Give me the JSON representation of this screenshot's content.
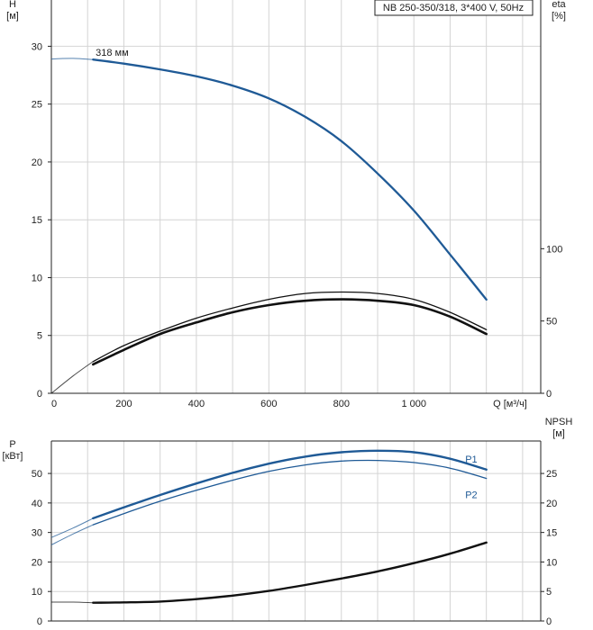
{
  "chart_data": [
    {
      "type": "line",
      "panel": "top",
      "legend_box": "NB 250-350/318, 3*400 V, 50Hz",
      "grid": true,
      "left_axis": {
        "title_line1": "H",
        "title_line2": "[м]",
        "range": [
          0,
          34
        ],
        "ticks": [
          0,
          5,
          10,
          15,
          20,
          25,
          30
        ],
        "tick_labels": [
          "0",
          "5",
          "10",
          "15",
          "20",
          "25",
          "30"
        ]
      },
      "right_axis": {
        "title_line1": "eta",
        "title_line2": "[%]",
        "range": [
          0,
          272
        ],
        "ticks": [
          0,
          50,
          100
        ],
        "tick_labels": [
          "0",
          "50",
          "100"
        ]
      },
      "x_axis": {
        "title": "Q [м³/ч]",
        "range": [
          0,
          1350
        ],
        "ticks": [
          0,
          200,
          400,
          600,
          800,
          1000
        ],
        "tick_labels": [
          "0",
          "200",
          "400",
          "600",
          "800",
          "1 000"
        ],
        "grid_every": 100
      },
      "series": [
        {
          "name": "318 мм",
          "axis": "left",
          "color": "#1f5a96",
          "width": 2.3,
          "x": [
            0,
            60,
            115,
            200,
            300,
            400,
            500,
            600,
            700,
            800,
            900,
            1000,
            1100,
            1200
          ],
          "y": [
            28.9,
            28.95,
            28.85,
            28.5,
            28.0,
            27.4,
            26.6,
            25.5,
            23.9,
            21.8,
            19.0,
            15.8,
            12.0,
            8.1
          ],
          "dashed_to_x": 115
        },
        {
          "name": "",
          "axis": "right",
          "color": "#111111",
          "width": 1.3,
          "x": [
            0,
            60,
            115,
            200,
            300,
            400,
            500,
            600,
            700,
            800,
            900,
            1000,
            1100,
            1200
          ],
          "y": [
            0,
            12,
            22,
            33,
            43,
            52,
            59,
            65,
            69,
            70,
            69,
            65,
            56,
            44
          ],
          "dashed_to_x": 115
        },
        {
          "name": "",
          "axis": "right",
          "color": "#111111",
          "width": 2.6,
          "x": [
            115,
            200,
            300,
            400,
            500,
            600,
            700,
            800,
            900,
            1000,
            1100,
            1200
          ],
          "y": [
            20,
            30,
            41,
            49,
            56,
            61,
            64,
            65,
            64,
            61,
            53,
            41
          ]
        }
      ]
    },
    {
      "type": "line",
      "panel": "bottom",
      "grid": true,
      "left_axis": {
        "title_line1": "P",
        "title_line2": "[кВт]",
        "range": [
          0,
          61
        ],
        "ticks": [
          0,
          10,
          20,
          30,
          40,
          50
        ],
        "tick_labels": [
          "0",
          "10",
          "20",
          "30",
          "40",
          "50"
        ]
      },
      "right_axis": {
        "title_line1": "NPSH",
        "title_line2": "[м]",
        "range": [
          0,
          30.5
        ],
        "ticks": [
          0,
          5,
          10,
          15,
          20,
          25
        ],
        "tick_labels": [
          "0",
          "5",
          "10",
          "15",
          "20",
          "25"
        ]
      },
      "x_axis": {
        "range": [
          0,
          1350
        ],
        "grid_every": 100
      },
      "series": [
        {
          "name": "P1",
          "axis": "left",
          "color": "#1f5a96",
          "width": 2.4,
          "x": [
            0,
            60,
            115,
            200,
            300,
            400,
            500,
            600,
            700,
            800,
            900,
            1000,
            1100,
            1200
          ],
          "y": [
            28.3,
            31.5,
            34.8,
            38.5,
            42.7,
            46.6,
            50.2,
            53.3,
            55.7,
            57.2,
            57.7,
            57.2,
            55.0,
            51.3
          ],
          "dashed_to_x": 115
        },
        {
          "name": "P2",
          "axis": "left",
          "color": "#1f5a96",
          "width": 1.3,
          "x": [
            0,
            60,
            115,
            200,
            300,
            400,
            500,
            600,
            700,
            800,
            900,
            1000,
            1100,
            1200
          ],
          "y": [
            25.8,
            29.5,
            32.6,
            36.4,
            40.6,
            44.3,
            47.7,
            50.7,
            52.9,
            54.2,
            54.4,
            53.7,
            51.8,
            48.3
          ],
          "dashed_to_x": 115
        },
        {
          "name": "",
          "axis": "right",
          "color": "#111111",
          "width": 2.4,
          "x": [
            0,
            60,
            115,
            200,
            300,
            400,
            500,
            600,
            700,
            800,
            900,
            1000,
            1100,
            1200
          ],
          "y": [
            3.2,
            3.2,
            3.1,
            3.15,
            3.3,
            3.7,
            4.3,
            5.1,
            6.1,
            7.2,
            8.4,
            9.8,
            11.4,
            13.3
          ],
          "dashed_to_x": 115
        }
      ]
    }
  ]
}
